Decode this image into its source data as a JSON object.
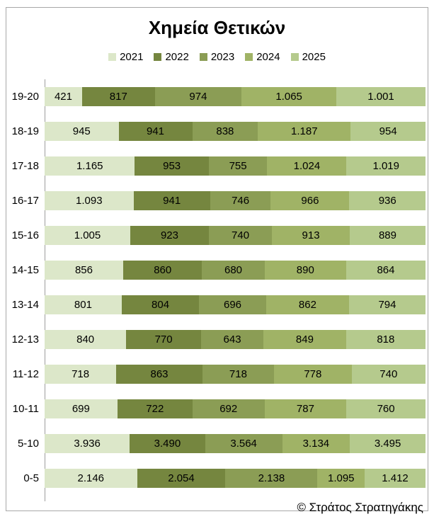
{
  "window": {
    "footer_credit": "© Στράτος Στρατηγάκης"
  },
  "chart_data": {
    "type": "bar",
    "orientation": "horizontal",
    "stacking": "percent",
    "title": "Χημεία Θετικών",
    "legend_position": "top",
    "grid": false,
    "axis_line_color": "#9d9d9d",
    "categories": [
      "19-20",
      "18-19",
      "17-18",
      "16-17",
      "15-16",
      "14-15",
      "13-14",
      "12-13",
      "11-12",
      "10-11",
      "5-10",
      "0-5"
    ],
    "series": [
      {
        "name": "2021",
        "color": "#DCE7C9",
        "values": [
          421,
          945,
          1165,
          1093,
          1005,
          856,
          801,
          840,
          718,
          699,
          3936,
          2146
        ],
        "labels": [
          "421",
          "945",
          "1.165",
          "1.093",
          "1.005",
          "856",
          "801",
          "840",
          "718",
          "699",
          "3.936",
          "2.146"
        ]
      },
      {
        "name": "2022",
        "color": "#75863F",
        "values": [
          817,
          941,
          953,
          941,
          923,
          860,
          804,
          770,
          863,
          722,
          3490,
          2054
        ],
        "labels": [
          "817",
          "941",
          "953",
          "941",
          "923",
          "860",
          "804",
          "770",
          "863",
          "722",
          "3.490",
          "2.054"
        ]
      },
      {
        "name": "2023",
        "color": "#8B9D55",
        "values": [
          974,
          838,
          755,
          746,
          740,
          680,
          696,
          643,
          718,
          692,
          3564,
          2138
        ],
        "labels": [
          "974",
          "838",
          "755",
          "746",
          "740",
          "680",
          "696",
          "643",
          "718",
          "692",
          "3.564",
          "2.138"
        ]
      },
      {
        "name": "2024",
        "color": "#A0B366",
        "values": [
          1065,
          1187,
          1024,
          966,
          913,
          890,
          862,
          849,
          778,
          787,
          3134,
          1095
        ],
        "labels": [
          "1.065",
          "1.187",
          "1.024",
          "966",
          "913",
          "890",
          "862",
          "849",
          "778",
          "787",
          "3.134",
          "1.095"
        ]
      },
      {
        "name": "2025",
        "color": "#B5CA8D",
        "values": [
          1001,
          954,
          1019,
          936,
          889,
          864,
          794,
          818,
          740,
          760,
          3495,
          1412
        ],
        "labels": [
          "1.001",
          "954",
          "1.019",
          "936",
          "889",
          "864",
          "794",
          "818",
          "740",
          "760",
          "3.495",
          "1.412"
        ]
      }
    ]
  }
}
